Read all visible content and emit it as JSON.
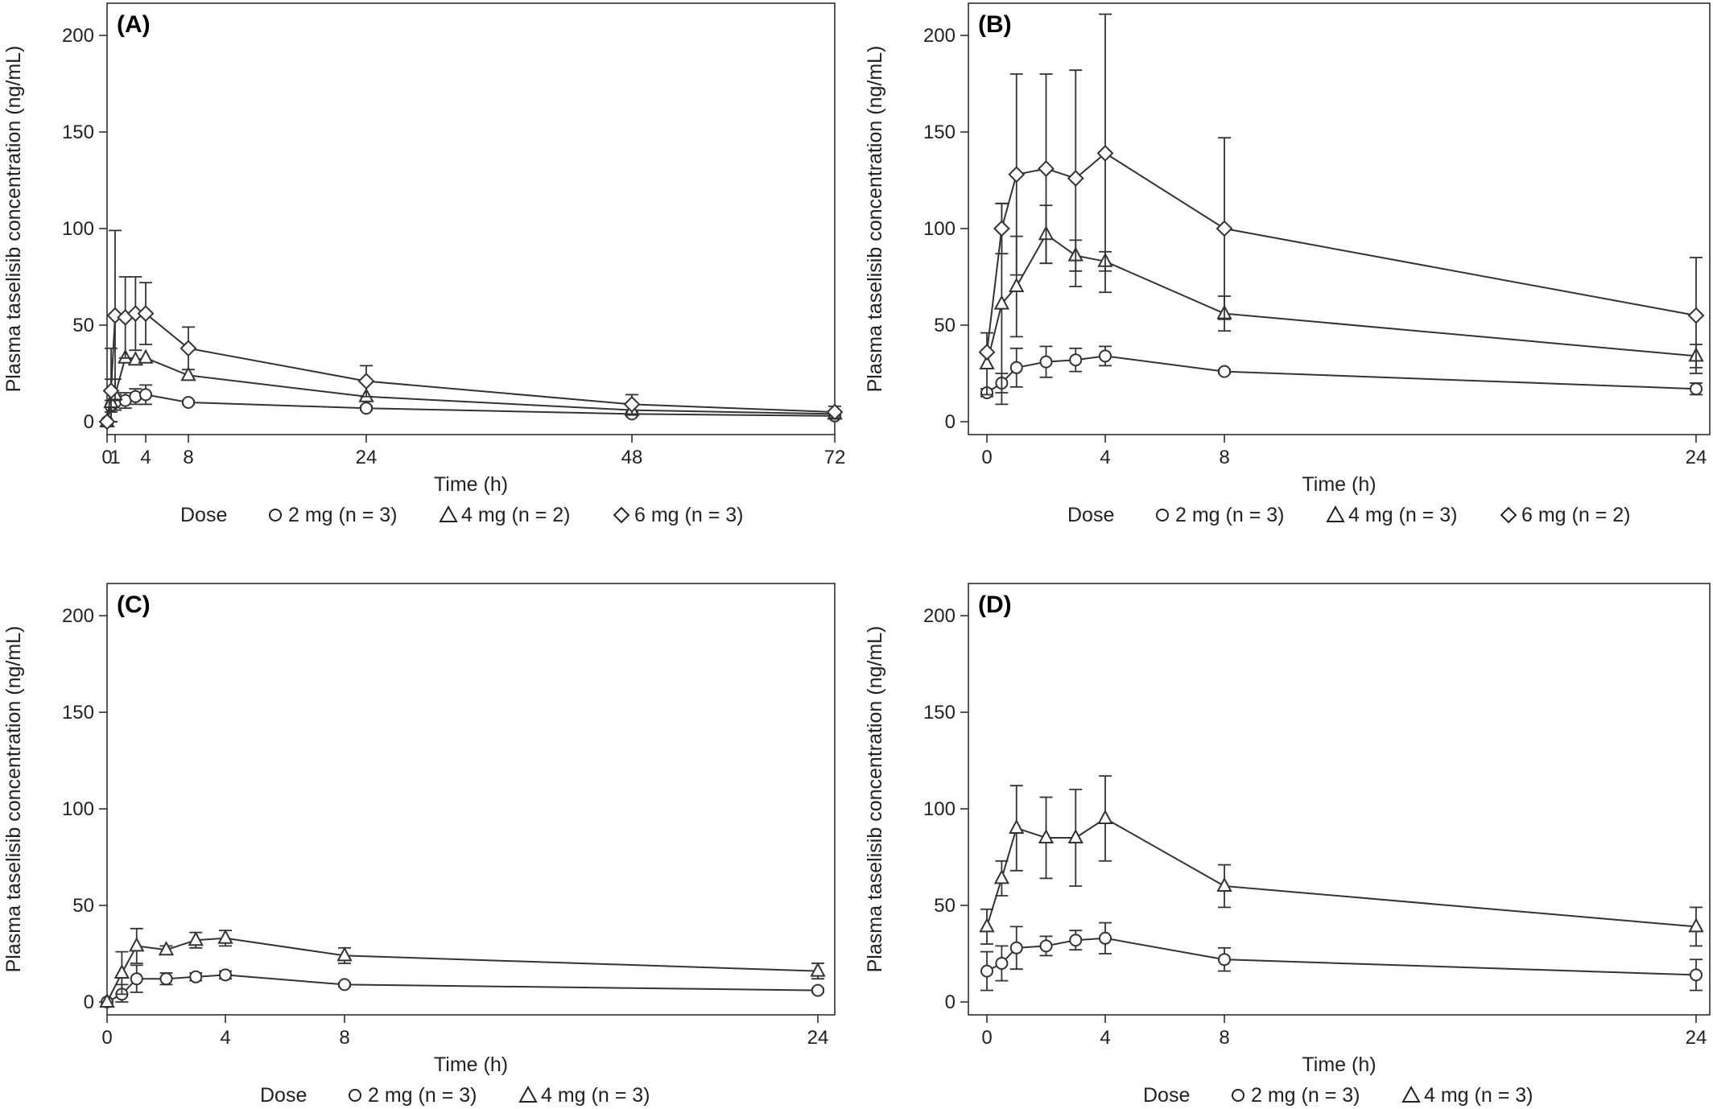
{
  "chart_data": [
    {
      "type": "line",
      "panel_label": "(A)",
      "xlabel": "Time (h)",
      "ylabel": "Plasma taselisib concentration (ng/mL)",
      "xlim": [
        0,
        72
      ],
      "ylim": [
        0,
        200
      ],
      "x_ticks": [
        0,
        1,
        4,
        8,
        24,
        48,
        72
      ],
      "x_tick_labels": [
        "0",
        "1",
        "4",
        "8",
        "24",
        "48",
        "72"
      ],
      "y_ticks": [
        0,
        50,
        100,
        150,
        200
      ],
      "y_tick_labels": [
        "0",
        "50",
        "100",
        "150",
        "200"
      ],
      "legend_title": "Dose",
      "legend_position": "bottom",
      "series": [
        {
          "name": "2 mg (n = 3)",
          "marker": "circle",
          "x": [
            0,
            0.5,
            1,
            2,
            3,
            4,
            8,
            24,
            48,
            72
          ],
          "y": [
            0,
            8,
            10,
            11,
            13,
            14,
            10,
            7,
            4,
            3
          ],
          "err": [
            0,
            3,
            4,
            4,
            4,
            5,
            1,
            1,
            1,
            1
          ]
        },
        {
          "name": "4 mg (n = 2)",
          "marker": "triangle",
          "x": [
            0,
            0.5,
            1,
            2,
            3,
            4,
            8,
            24,
            48,
            72
          ],
          "y": [
            0,
            10,
            14,
            33,
            32,
            33,
            24,
            13,
            6,
            4
          ],
          "err": [
            0,
            12,
            8,
            0,
            0,
            0,
            0,
            0,
            0,
            0
          ]
        },
        {
          "name": "6 mg (n = 3)",
          "marker": "diamond",
          "x": [
            0,
            0.5,
            1,
            2,
            3,
            4,
            8,
            24,
            48,
            72
          ],
          "y": [
            0,
            16,
            55,
            54,
            56,
            56,
            38,
            21,
            9,
            5
          ],
          "err": [
            0,
            22,
            44,
            21,
            19,
            16,
            11,
            8,
            5,
            3
          ]
        }
      ]
    },
    {
      "type": "line",
      "panel_label": "(B)",
      "xlabel": "Time (h)",
      "ylabel": "Plasma taselisib concentration (ng/mL)",
      "xlim": [
        0,
        24
      ],
      "ylim": [
        0,
        200
      ],
      "x_ticks": [
        0,
        4,
        8,
        24
      ],
      "x_tick_labels": [
        "0",
        "4",
        "8",
        "24"
      ],
      "y_ticks": [
        0,
        50,
        100,
        150,
        200
      ],
      "y_tick_labels": [
        "0",
        "50",
        "100",
        "150",
        "200"
      ],
      "legend_title": "Dose",
      "legend_position": "bottom",
      "series": [
        {
          "name": "2 mg (n = 3)",
          "marker": "circle",
          "x": [
            0,
            0.5,
            1,
            2,
            3,
            4,
            8,
            24
          ],
          "y": [
            15,
            20,
            28,
            31,
            32,
            34,
            26,
            17
          ],
          "err": [
            2,
            5,
            10,
            8,
            6,
            5,
            1,
            3
          ]
        },
        {
          "name": "4 mg (n = 3)",
          "marker": "triangle",
          "x": [
            0,
            0.5,
            1,
            2,
            3,
            4,
            8,
            24
          ],
          "y": [
            30,
            61,
            70,
            97,
            86,
            83,
            56,
            34
          ],
          "err": [
            16,
            52,
            26,
            15,
            8,
            5,
            9,
            6
          ]
        },
        {
          "name": "6 mg (n = 2)",
          "marker": "diamond",
          "x": [
            0,
            0.5,
            1,
            2,
            3,
            4,
            8,
            24
          ],
          "y": [
            36,
            100,
            128,
            131,
            126,
            139,
            100,
            55
          ],
          "err": [
            0,
            13,
            52,
            49,
            56,
            72,
            47,
            30
          ]
        }
      ]
    },
    {
      "type": "line",
      "panel_label": "(C)",
      "xlabel": "Time (h)",
      "ylabel": "Plasma taselisib concentration (ng/mL)",
      "xlim": [
        0,
        24
      ],
      "ylim": [
        0,
        200
      ],
      "x_ticks": [
        0,
        4,
        8,
        24
      ],
      "x_tick_labels": [
        "0",
        "4",
        "8",
        "24"
      ],
      "y_ticks": [
        0,
        50,
        100,
        150,
        200
      ],
      "y_tick_labels": [
        "0",
        "50",
        "100",
        "150",
        "200"
      ],
      "legend_title": "Dose",
      "legend_position": "bottom",
      "series": [
        {
          "name": "2 mg (n = 3)",
          "marker": "circle",
          "x": [
            0,
            0.5,
            1,
            2,
            3,
            4,
            8,
            24
          ],
          "y": [
            0,
            4,
            12,
            12,
            13,
            14,
            9,
            6
          ],
          "err": [
            0,
            5,
            7,
            3,
            2,
            2,
            1,
            1
          ]
        },
        {
          "name": "4 mg (n = 3)",
          "marker": "triangle",
          "x": [
            0,
            0.5,
            1,
            2,
            3,
            4,
            8,
            24
          ],
          "y": [
            0,
            15,
            29,
            27,
            32,
            33,
            24,
            16
          ],
          "err": [
            0,
            11,
            9,
            2,
            4,
            4,
            4,
            4
          ]
        }
      ]
    },
    {
      "type": "line",
      "panel_label": "(D)",
      "xlabel": "Time (h)",
      "ylabel": "Plasma taselisib concentration (ng/mL)",
      "xlim": [
        0,
        24
      ],
      "ylim": [
        0,
        200
      ],
      "x_ticks": [
        0,
        4,
        8,
        24
      ],
      "x_tick_labels": [
        "0",
        "4",
        "8",
        "24"
      ],
      "y_ticks": [
        0,
        50,
        100,
        150,
        200
      ],
      "y_tick_labels": [
        "0",
        "50",
        "100",
        "150",
        "200"
      ],
      "legend_title": "Dose",
      "legend_position": "bottom",
      "series": [
        {
          "name": "2 mg (n = 3)",
          "marker": "circle",
          "x": [
            0,
            0.5,
            1,
            2,
            3,
            4,
            8,
            24
          ],
          "y": [
            16,
            20,
            28,
            29,
            32,
            33,
            22,
            14
          ],
          "err": [
            10,
            9,
            11,
            5,
            5,
            8,
            6,
            8
          ]
        },
        {
          "name": "4 mg (n = 3)",
          "marker": "triangle",
          "x": [
            0,
            0.5,
            1,
            2,
            3,
            4,
            8,
            24
          ],
          "y": [
            39,
            64,
            90,
            85,
            85,
            95,
            60,
            39
          ],
          "err": [
            9,
            9,
            22,
            21,
            25,
            22,
            11,
            10
          ]
        }
      ]
    }
  ]
}
